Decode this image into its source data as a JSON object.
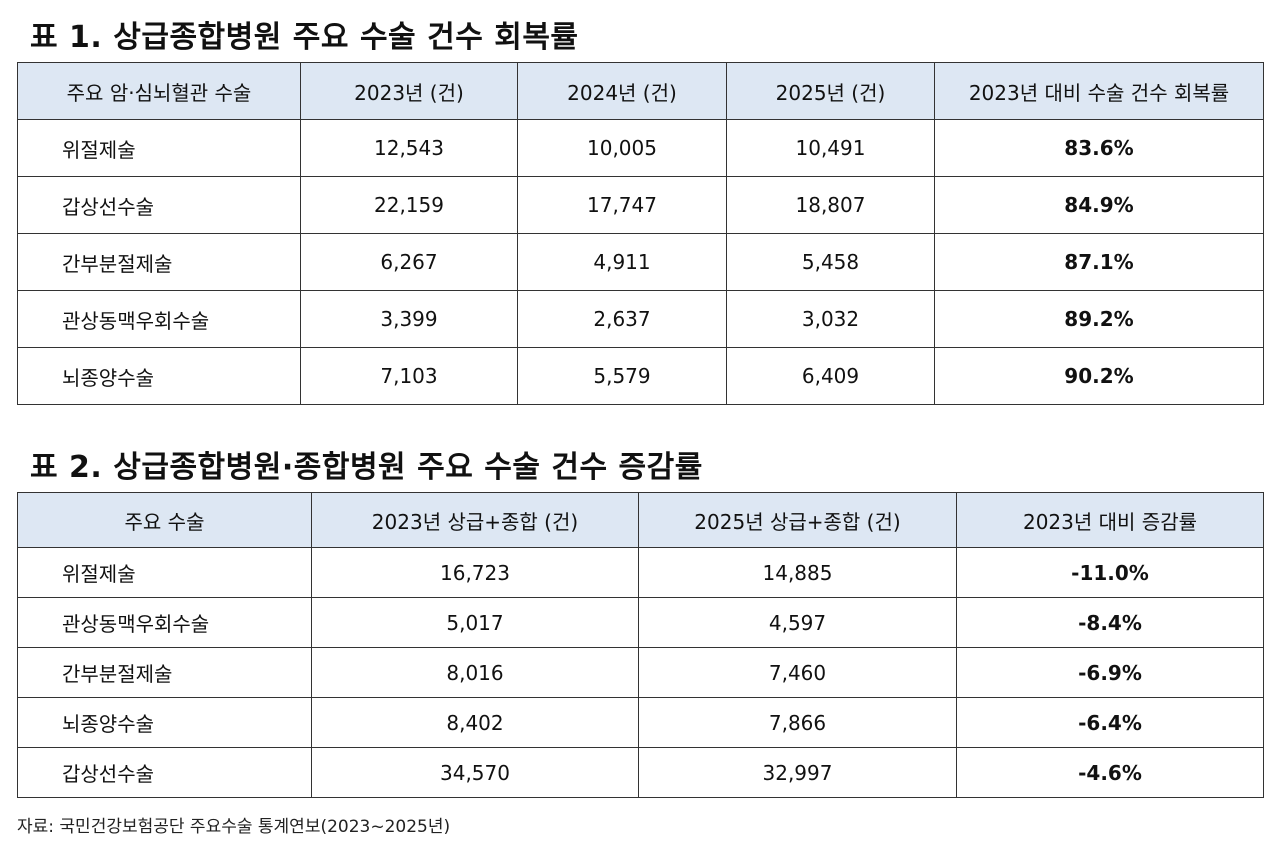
{
  "table1": {
    "title": "표 1. 상급종합병원 주요 수술 건수 회복률",
    "headers": [
      "주요 암·심뇌혈관 수술",
      "2023년 (건)",
      "2024년 (건)",
      "2025년 (건)",
      "2023년 대비 수술 건수 회복률"
    ],
    "rows": [
      [
        "위절제술",
        "12,543",
        "10,005",
        "10,491",
        "83.6%"
      ],
      [
        "갑상선수술",
        "22,159",
        "17,747",
        "18,807",
        "84.9%"
      ],
      [
        "간부분절제술",
        "6,267",
        "4,911",
        "5,458",
        "87.1%"
      ],
      [
        "관상동맥우회수술",
        "3,399",
        "2,637",
        "3,032",
        "89.2%"
      ],
      [
        "뇌종양수술",
        "7,103",
        "5,579",
        "6,409",
        "90.2%"
      ]
    ]
  },
  "table2": {
    "title": "표 2. 상급종합병원·종합병원 주요 수술 건수 증감률",
    "headers": [
      "주요 수술",
      "2023년 상급+종합 (건)",
      "2025년 상급+종합 (건)",
      "2023년 대비 증감률"
    ],
    "rows": [
      [
        "위절제술",
        "16,723",
        "14,885",
        "-11.0%"
      ],
      [
        "관상동맥우회수술",
        "5,017",
        "4,597",
        "-8.4%"
      ],
      [
        "간부분절제술",
        "8,016",
        "7,460",
        "-6.9%"
      ],
      [
        "뇌종양수술",
        "8,402",
        "7,866",
        "-6.4%"
      ],
      [
        "갑상선수술",
        "34,570",
        "32,997",
        "-4.6%"
      ]
    ]
  },
  "source": "자료: 국민건강보험공단 주요수술 통계연보(2023~2025년)"
}
